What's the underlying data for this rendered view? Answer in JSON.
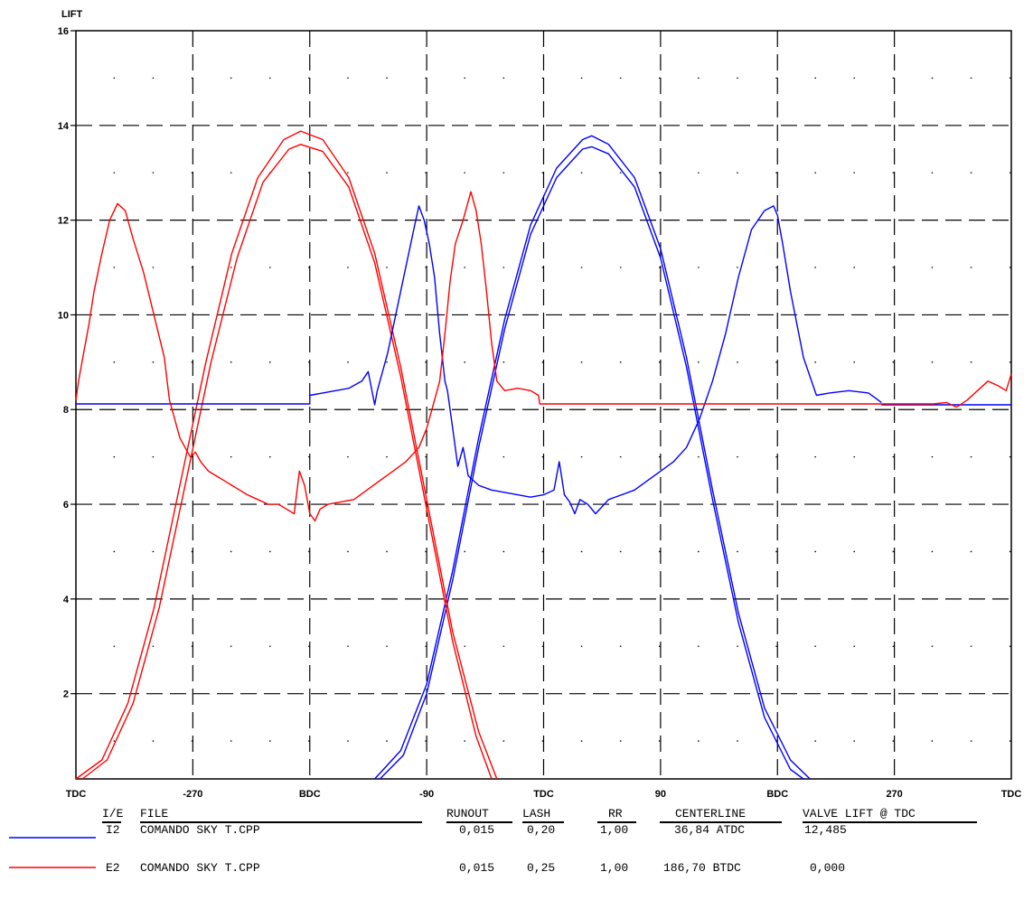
{
  "chart_data": {
    "type": "line",
    "ylabel": "LIFT",
    "xlim": [
      -360,
      360
    ],
    "ylim": [
      0.2,
      16
    ],
    "grid": true,
    "y_ticks": [
      2,
      4,
      6,
      8,
      10,
      12,
      14,
      16
    ],
    "x_ticks": [
      {
        "value": -360,
        "label": "TDC"
      },
      {
        "value": -270,
        "label": "-270"
      },
      {
        "value": -180,
        "label": "BDC"
      },
      {
        "value": -90,
        "label": "-90"
      },
      {
        "value": 0,
        "label": "TDC"
      },
      {
        "value": 90,
        "label": "90"
      },
      {
        "value": 180,
        "label": "BDC"
      },
      {
        "value": 270,
        "label": "270"
      },
      {
        "value": 360,
        "label": "TDC"
      }
    ],
    "series": [
      {
        "id": "I2-lift-a",
        "color": "#0000ff",
        "x": [
          -130,
          -110,
          -90,
          -70,
          -50,
          -30,
          -10,
          10,
          30,
          37,
          50,
          70,
          90,
          110,
          130,
          150,
          170,
          190,
          205
        ],
        "y": [
          0.2,
          0.8,
          2.2,
          4.6,
          7.4,
          9.9,
          11.9,
          13.1,
          13.7,
          13.78,
          13.6,
          12.9,
          11.4,
          9.1,
          6.3,
          3.7,
          1.7,
          0.6,
          0.2
        ]
      },
      {
        "id": "I2-lift-b",
        "color": "#0000ff",
        "x": [
          -126,
          -108,
          -90,
          -70,
          -50,
          -30,
          -10,
          10,
          30,
          37,
          50,
          70,
          90,
          110,
          130,
          150,
          170,
          190,
          200
        ],
        "y": [
          0.2,
          0.7,
          2.0,
          4.4,
          7.2,
          9.7,
          11.7,
          12.9,
          13.5,
          13.55,
          13.4,
          12.7,
          11.2,
          8.9,
          6.1,
          3.5,
          1.5,
          0.4,
          0.2
        ]
      },
      {
        "id": "E2-lift-a",
        "color": "#ff0000",
        "x": [
          -360,
          -340,
          -320,
          -300,
          -280,
          -260,
          -240,
          -220,
          -200,
          -187,
          -170,
          -150,
          -130,
          -110,
          -90,
          -70,
          -50,
          -36
        ],
        "y": [
          0.2,
          0.6,
          1.8,
          3.8,
          6.4,
          9.0,
          11.3,
          12.9,
          13.7,
          13.88,
          13.7,
          12.9,
          11.3,
          8.9,
          6.1,
          3.3,
          1.2,
          0.2
        ]
      },
      {
        "id": "E2-lift-b",
        "color": "#ff0000",
        "x": [
          -355,
          -336,
          -316,
          -296,
          -276,
          -256,
          -236,
          -216,
          -196,
          -187,
          -170,
          -150,
          -130,
          -110,
          -90,
          -70,
          -52,
          -40
        ],
        "y": [
          0.2,
          0.6,
          1.8,
          3.8,
          6.4,
          9.0,
          11.2,
          12.8,
          13.5,
          13.6,
          13.45,
          12.7,
          11.1,
          8.7,
          5.9,
          3.1,
          1.1,
          0.2
        ]
      },
      {
        "id": "I2-trace",
        "color": "#0000ff",
        "x": [
          -360,
          -248,
          -180,
          -180,
          -170,
          -160,
          -150,
          -140,
          -135,
          -130,
          -128,
          -120,
          -110,
          -100,
          -96,
          -92,
          -88,
          -84,
          -80,
          -76,
          -74,
          -70,
          -66,
          -62,
          -58,
          -50,
          -40,
          -30,
          -20,
          -10,
          0,
          8,
          12,
          16,
          20,
          24,
          28,
          34,
          40,
          50,
          60,
          70,
          80,
          90,
          100,
          110,
          120,
          130,
          140,
          150,
          160,
          170,
          177,
          180,
          184,
          190,
          200,
          210,
          220,
          235,
          250,
          255,
          260
        ],
        "y": [
          8.12,
          8.12,
          8.12,
          8.3,
          8.35,
          8.4,
          8.45,
          8.6,
          8.8,
          8.1,
          8.4,
          9.2,
          10.5,
          11.8,
          12.3,
          12.0,
          11.5,
          10.8,
          9.6,
          8.6,
          8.4,
          7.6,
          6.8,
          7.2,
          6.6,
          6.4,
          6.3,
          6.25,
          6.2,
          6.15,
          6.2,
          6.3,
          6.9,
          6.2,
          6.05,
          5.8,
          6.1,
          6.0,
          5.8,
          6.1,
          6.2,
          6.3,
          6.5,
          6.7,
          6.9,
          7.2,
          7.8,
          8.6,
          9.6,
          10.8,
          11.8,
          12.2,
          12.3,
          12.1,
          11.5,
          10.5,
          9.1,
          8.3,
          8.35,
          8.4,
          8.35,
          8.25,
          8.15
        ]
      },
      {
        "id": "I2-base",
        "color": "#0000ff",
        "x": [
          260,
          360
        ],
        "y": [
          8.1,
          8.1
        ]
      },
      {
        "id": "E2-trace",
        "color": "#ff0000",
        "x": [
          -360,
          -358,
          -354,
          -350,
          -346,
          -340,
          -334,
          -328,
          -322,
          -316,
          -308,
          -300,
          -292,
          -288,
          -284,
          -280,
          -276,
          -272,
          -268,
          -264,
          -258,
          -252,
          -246,
          -240,
          -234,
          -228,
          -220,
          -212,
          -204,
          -198,
          -192,
          -188,
          -184,
          -180,
          -176,
          -172,
          -166,
          -156,
          -146,
          -136,
          -126,
          -116,
          -106,
          -96,
          -90,
          -86,
          -80,
          -76,
          -72,
          -68,
          -62,
          -56,
          -52,
          -48,
          -44,
          -40,
          -36,
          -30,
          -20,
          -10,
          -4,
          -3,
          20,
          40,
          60,
          80,
          100,
          120,
          140,
          160,
          180,
          200,
          220,
          240,
          260,
          280,
          300,
          310,
          318,
          326,
          334,
          342,
          350,
          356,
          360
        ],
        "y": [
          8.2,
          8.6,
          9.2,
          9.8,
          10.5,
          11.3,
          12.0,
          12.35,
          12.2,
          11.6,
          10.9,
          10.0,
          9.1,
          8.2,
          7.8,
          7.4,
          7.2,
          7.0,
          7.1,
          6.9,
          6.7,
          6.6,
          6.5,
          6.4,
          6.3,
          6.2,
          6.1,
          6.0,
          6.0,
          5.9,
          5.8,
          6.7,
          6.4,
          5.8,
          5.65,
          5.9,
          6.0,
          6.05,
          6.1,
          6.3,
          6.5,
          6.7,
          6.9,
          7.2,
          7.6,
          8.0,
          8.6,
          9.6,
          10.7,
          11.5,
          12.0,
          12.6,
          12.2,
          11.5,
          10.5,
          9.4,
          8.6,
          8.4,
          8.45,
          8.4,
          8.3,
          8.12,
          8.12,
          8.12,
          8.12,
          8.12,
          8.12,
          8.12,
          8.12,
          8.12,
          8.12,
          8.12,
          8.12,
          8.12,
          8.12,
          8.12,
          8.12,
          8.15,
          8.05,
          8.2,
          8.4,
          8.6,
          8.5,
          8.4,
          8.75
        ]
      }
    ]
  },
  "legend": {
    "headers": {
      "ie": "I/E",
      "file": "FILE",
      "runout": "RUNOUT",
      "lash": "LASH",
      "rr": "RR",
      "centerline": "CENTERLINE",
      "valve_lift": "VALVE LIFT @ TDC"
    },
    "rows": [
      {
        "color": "#0000ff",
        "ie": "I2",
        "file": "COMANDO SKY T.CPP",
        "runout": "0,015",
        "lash": "0,20",
        "rr": "1,00",
        "centerline": "36,84 ATDC",
        "valve_lift": "12,485"
      },
      {
        "color": "#ff0000",
        "ie": "E2",
        "file": "COMANDO SKY T.CPP",
        "runout": "0,015",
        "lash": "0,25",
        "rr": "1,00",
        "centerline": "186,70 BTDC",
        "valve_lift": "0,000"
      }
    ]
  }
}
